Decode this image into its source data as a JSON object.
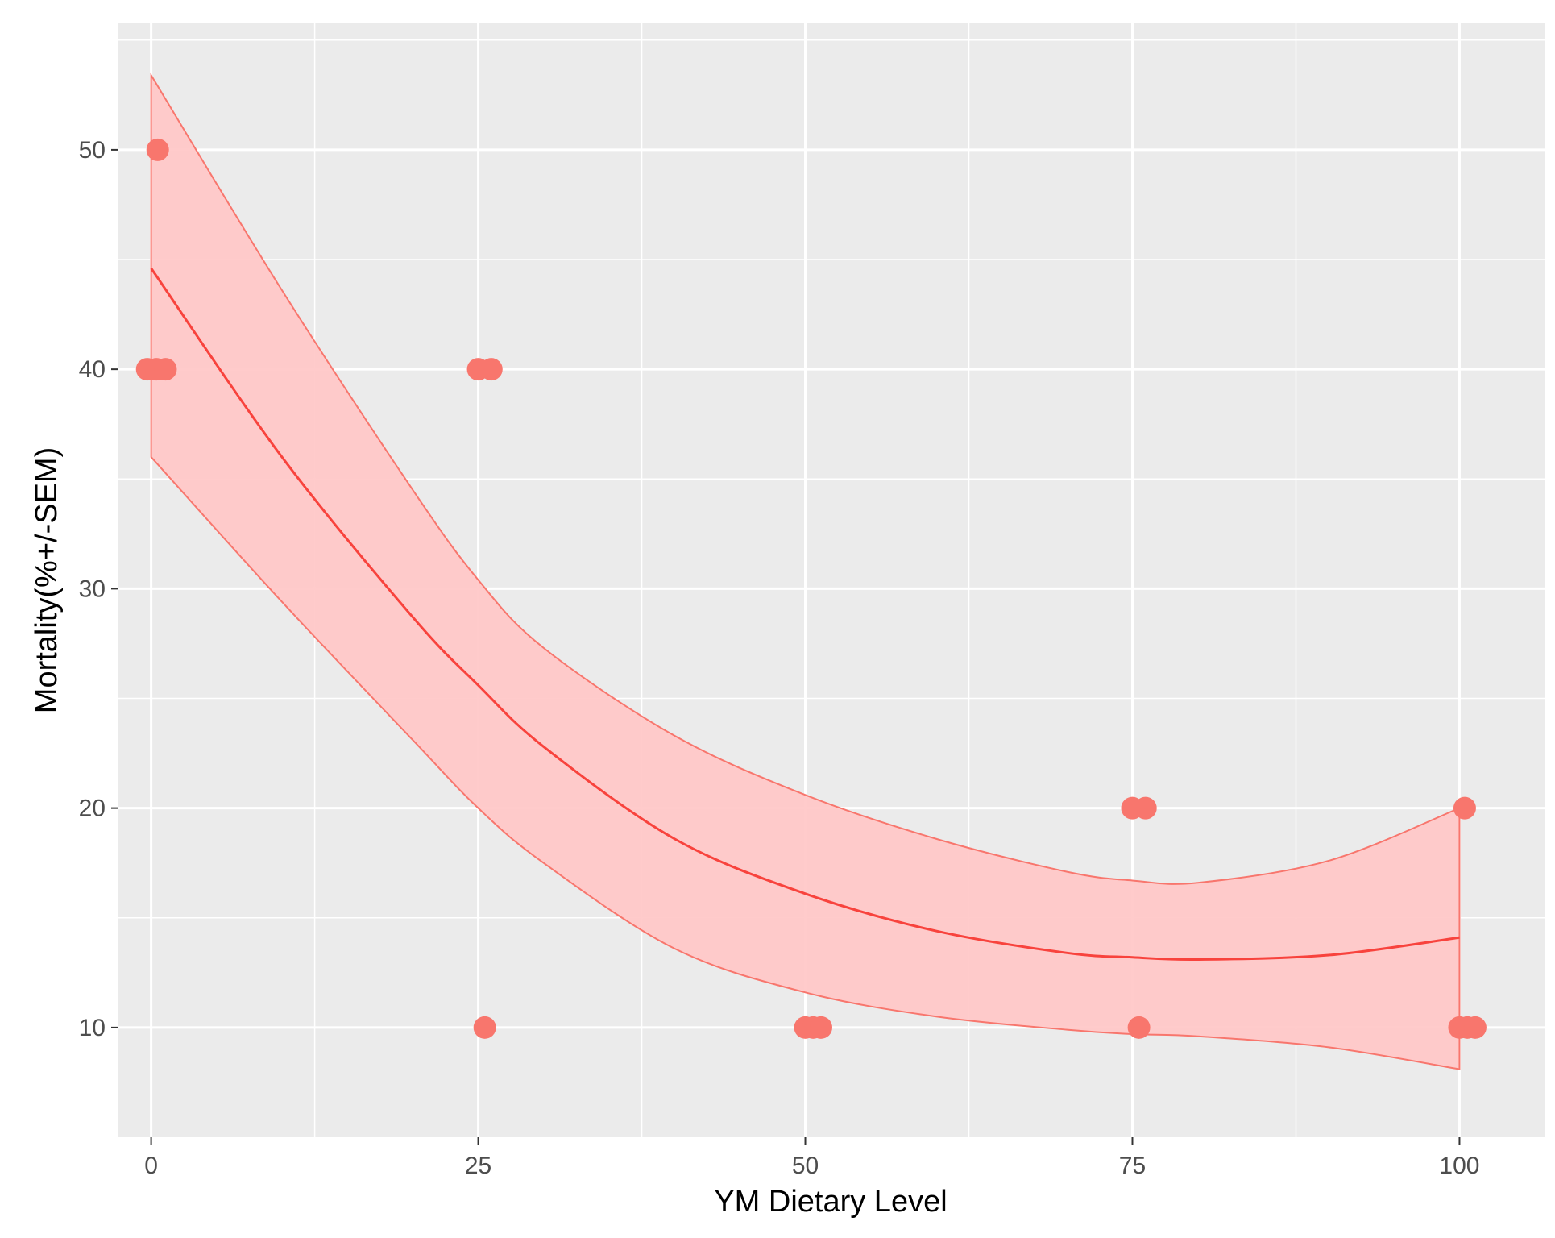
{
  "chart_data": {
    "type": "scatter",
    "xlabel": "YM Dietary Level",
    "ylabel": "Mortality(%+/-SEM)",
    "xlim": [
      -2.5,
      106.5
    ],
    "ylim": [
      5.0,
      55.8
    ],
    "x_ticks": [
      0,
      25,
      50,
      75,
      100
    ],
    "x_tick_labels": [
      "0",
      "25",
      "50",
      "75",
      "100"
    ],
    "x_minor_ticks": [
      12.5,
      37.5,
      62.5,
      87.5
    ],
    "y_ticks": [
      10,
      20,
      30,
      40,
      50
    ],
    "y_tick_labels": [
      "10",
      "20",
      "30",
      "40",
      "50"
    ],
    "y_minor_ticks": [
      15,
      25,
      35,
      45,
      55
    ],
    "grid": true,
    "legend": "none",
    "points": [
      {
        "x": 0.5,
        "y": 50
      },
      {
        "x": -0.3,
        "y": 40
      },
      {
        "x": 0.4,
        "y": 40
      },
      {
        "x": 1.1,
        "y": 40
      },
      {
        "x": 25.0,
        "y": 40
      },
      {
        "x": 26.0,
        "y": 40
      },
      {
        "x": 25.5,
        "y": 10
      },
      {
        "x": 50.0,
        "y": 10
      },
      {
        "x": 50.6,
        "y": 10
      },
      {
        "x": 51.2,
        "y": 10
      },
      {
        "x": 75.0,
        "y": 20
      },
      {
        "x": 76.0,
        "y": 20
      },
      {
        "x": 75.5,
        "y": 10
      },
      {
        "x": 100.4,
        "y": 20
      },
      {
        "x": 100.0,
        "y": 10
      },
      {
        "x": 100.6,
        "y": 10
      },
      {
        "x": 101.2,
        "y": 10
      }
    ],
    "fit": {
      "method": "quadratic",
      "x": [
        0,
        10,
        20,
        25,
        30,
        40,
        50,
        60,
        70,
        75,
        80,
        90,
        100
      ],
      "y": [
        44.6,
        36.0,
        28.7,
        25.6,
        22.8,
        18.6,
        16.1,
        14.4,
        13.4,
        13.2,
        13.1,
        13.3,
        14.1
      ],
      "ymin": [
        36.0,
        29.4,
        23.1,
        20.0,
        17.5,
        13.6,
        11.6,
        10.5,
        9.9,
        9.7,
        9.6,
        9.1,
        8.1
      ],
      "ymax": [
        53.4,
        43.6,
        34.5,
        30.4,
        27.3,
        23.3,
        20.6,
        18.6,
        17.1,
        16.7,
        16.6,
        17.6,
        20.0
      ]
    },
    "colors": {
      "points": "#f8766d",
      "fit_line": "#f8433d",
      "ribbon_fill": "#ffc8c8",
      "ribbon_edge": "#f8766d",
      "panel_background": "#ebebeb",
      "grid": "#ffffff"
    }
  }
}
